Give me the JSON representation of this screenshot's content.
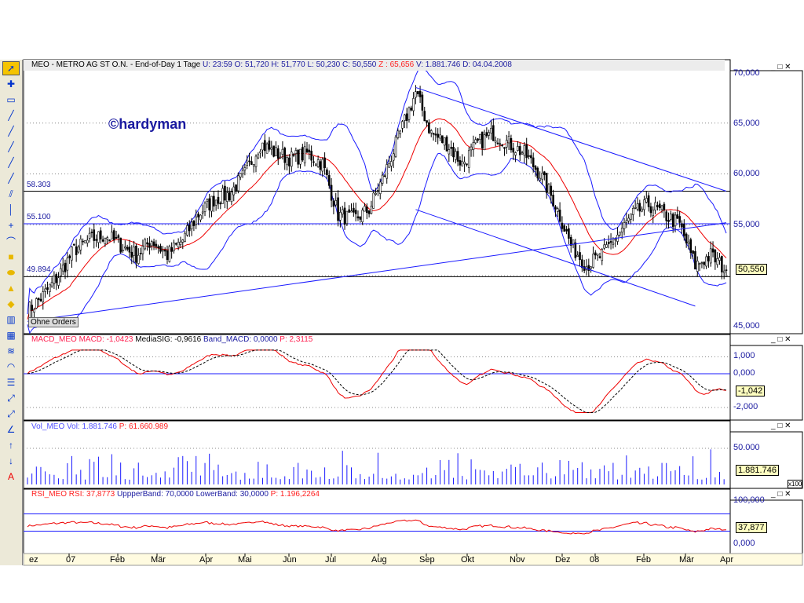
{
  "header": {
    "title": "MEO - METRO AG ST O.N. - End-of-Day 1 Tage",
    "u": "U: 23:59",
    "o": "O: 51,720",
    "h": "H: 51,770",
    "l": "L: 50,230",
    "c": "C: 50,550",
    "z": "Z : 65,656",
    "v": "V: 1.881.746",
    "d": "D: 04.04.2008"
  },
  "watermark": "©hardyman",
  "orders_label": "Ohne Orders",
  "levels": [
    {
      "label": "58.303",
      "value": 58.303
    },
    {
      "label": "55.100",
      "value": 55.1
    },
    {
      "label": "49.894",
      "value": 49.894
    }
  ],
  "price_axis": [
    "70,000",
    "65,000",
    "60,000",
    "55,000",
    "45,000"
  ],
  "price_badge": "50,550",
  "macd": {
    "title": "MACD_MEO",
    "macd": "MACD: -1,0423",
    "sig": "MediaSIG: -0,9616",
    "band": "Band_MACD: 0,0000",
    "p": "P: 2,3115",
    "axis": [
      "1,000",
      "0,000",
      "-2,000"
    ],
    "badge": "-1,042"
  },
  "vol": {
    "title": "Vol_MEO",
    "vol": "Vol: 1.881.746",
    "p": "P: 61.660.989",
    "axis": [
      "50.000"
    ],
    "badge": "1.881.746",
    "mult": "x100"
  },
  "rsi": {
    "title": "RSI_MEO",
    "rsi": "RSI: 37,8773",
    "upper": "UppperBand: 70,0000",
    "lower": "LowerBand: 30,0000",
    "p": "P: 1.196,2264",
    "axis": [
      "100,000",
      "0,000"
    ],
    "badge": "37,877"
  },
  "months": [
    "ez",
    "07",
    "Feb",
    "Mär",
    "Apr",
    "Mai",
    "Jun",
    "Jul",
    "Aug",
    "Sep",
    "Okt",
    "Nov",
    "Dez",
    "08",
    "Feb",
    "Mär",
    "Apr"
  ],
  "window_buttons": "_ □ ✕",
  "chart_data": {
    "type": "candlestick",
    "title": "MEO - METRO AG ST O.N.",
    "closes_biweekly": [
      46.5,
      48,
      50,
      52.5,
      53.5,
      54,
      53,
      52,
      53.5,
      52,
      53.5,
      56,
      57.5,
      58,
      60,
      63,
      62,
      61.5,
      62,
      61,
      56,
      55.5,
      56.5,
      60,
      64,
      68,
      64,
      63,
      61,
      63,
      64,
      63,
      62,
      60,
      57,
      53,
      51,
      52,
      54,
      56,
      57,
      56,
      55,
      51,
      52,
      50.55
    ],
    "ylim": [
      45,
      70
    ],
    "trendlines": [
      [
        [
          0,
          45.5
        ],
        [
          45,
          55.2
        ]
      ],
      [
        [
          25,
          68.5
        ],
        [
          45,
          58.3
        ]
      ],
      [
        [
          25,
          56.5
        ],
        [
          43,
          47
        ]
      ]
    ]
  },
  "toolbar": [
    "cursor",
    "crosshair",
    "rect",
    "line",
    "line2",
    "line3",
    "line4",
    "line5",
    "channel",
    "hline",
    "cross",
    "curve",
    "square",
    "ellipse",
    "triangle",
    "diamond",
    "grid1",
    "grid2",
    "fib",
    "arc",
    "list",
    "trend-a",
    "trend-b",
    "angle",
    "arrow-up",
    "arrow-down",
    "text"
  ]
}
